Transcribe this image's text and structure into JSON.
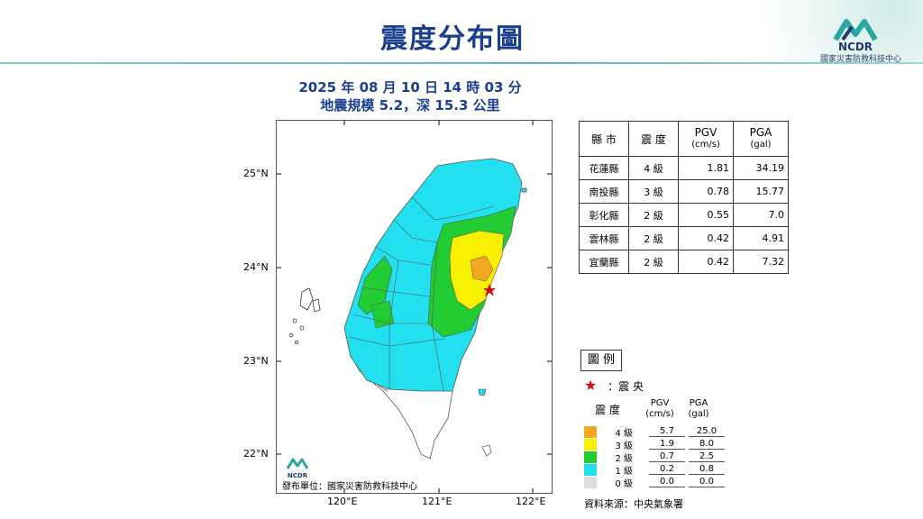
{
  "title": "震度分布圖",
  "org_logo_text": "NCDR",
  "org_name": "國家災害防救科技中心",
  "event": {
    "datetime": "2025 年 08 月 10 日 14 時 03 分",
    "magnitude_depth": "地震規模 5.2，深 15.3 公里"
  },
  "map": {
    "lat_labels": [
      "25°N",
      "24°N",
      "23°N",
      "22°N"
    ],
    "lon_labels": [
      "120°E",
      "121°E",
      "122°E"
    ],
    "publisher": "發布單位：國家災害防救科技中心",
    "publisher_logo": "NCDR"
  },
  "table": {
    "headers": [
      "縣 市",
      "震 度",
      "PGV",
      "(cm/s)",
      "PGA",
      "(gal)"
    ],
    "rows": [
      {
        "county": "花蓮縣",
        "intensity": "4 級",
        "pgv": "1.81",
        "pga": "34.19"
      },
      {
        "county": "南投縣",
        "intensity": "3 級",
        "pgv": "0.78",
        "pga": "15.77"
      },
      {
        "county": "彰化縣",
        "intensity": "2 級",
        "pgv": "0.55",
        "pga": "7.0"
      },
      {
        "county": "雲林縣",
        "intensity": "2 級",
        "pgv": "0.42",
        "pga": "4.91"
      },
      {
        "county": "宜蘭縣",
        "intensity": "2 級",
        "pgv": "0.42",
        "pga": "7.32"
      }
    ]
  },
  "legend": {
    "title": "圖 例",
    "epicenter_label": "：震 央",
    "intensity_header": "震 度",
    "pgv_header": "PGV",
    "pgv_unit": "(cm/s)",
    "pga_header": "PGA",
    "pga_unit": "(gal)",
    "levels": [
      {
        "label": "4 級",
        "color": "#f5a623",
        "pgv": "5.7",
        "pga": "25.0"
      },
      {
        "label": "3 級",
        "color": "#f7f000",
        "pgv": "1.9",
        "pga": "8.0"
      },
      {
        "label": "2 級",
        "color": "#22cc33",
        "pgv": "0.7",
        "pga": "2.5"
      },
      {
        "label": "1 級",
        "color": "#22e0f0",
        "pgv": "0.2",
        "pga": "0.8"
      },
      {
        "label": "0 級",
        "color": "#dddddd",
        "pgv": "0.0",
        "pga": "0.0"
      }
    ],
    "source": "資料來源：中央氣象署"
  },
  "colors": {
    "title": "#1a3f8f",
    "epicenter": "#cc1111"
  }
}
